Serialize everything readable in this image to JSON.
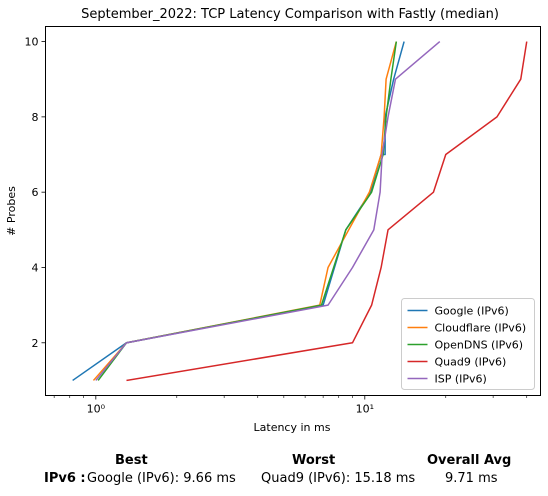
{
  "chart_data": {
    "type": "line",
    "title": "September_2022: TCP Latency Comparison with Fastly (median)",
    "xlabel": "Latency in ms",
    "ylabel": "# Probes",
    "xscale": "log",
    "xlim": [
      0.65,
      45
    ],
    "ylim": [
      0.6,
      10.4
    ],
    "xticks": [
      {
        "value": 1,
        "label": "10⁰"
      },
      {
        "value": 10,
        "label": "10¹"
      }
    ],
    "yticks": [
      2,
      4,
      6,
      8,
      10
    ],
    "grid": false,
    "legend": "lower-right",
    "series": [
      {
        "name": "Google (IPv6)",
        "color": "#1f77b4",
        "x": [
          0.82,
          1.3,
          7.0,
          8.5,
          10.5,
          11.5,
          11.9,
          11.9,
          12.8,
          14.0
        ],
        "y": [
          1,
          2,
          3,
          5,
          6,
          7,
          7,
          8,
          9,
          10
        ]
      },
      {
        "name": "Cloudflare (IPv6)",
        "color": "#ff7f0e",
        "x": [
          0.98,
          1.3,
          6.8,
          7.3,
          10.4,
          11.5,
          11.8,
          12.0,
          13.1
        ],
        "y": [
          1,
          2,
          3,
          4,
          6,
          7,
          8,
          9,
          10
        ]
      },
      {
        "name": "OpenDNS (IPv6)",
        "color": "#2ca02c",
        "x": [
          1.02,
          1.3,
          6.9,
          8.5,
          10.6,
          11.7,
          12.0,
          12.5,
          13.1
        ],
        "y": [
          1,
          2,
          3,
          5,
          6,
          7,
          8,
          9,
          10
        ]
      },
      {
        "name": "Quad9 (IPv6)",
        "color": "#d62728",
        "x": [
          1.3,
          9.0,
          10.6,
          11.5,
          12.2,
          18.0,
          20.0,
          31.0,
          38.0,
          40.0
        ],
        "y": [
          1,
          2,
          3,
          4,
          5,
          6,
          7,
          8,
          9,
          10
        ]
      },
      {
        "name": "ISP (IPv6)",
        "color": "#9467bd",
        "x": [
          1.0,
          1.3,
          7.3,
          9.0,
          10.8,
          11.4,
          11.6,
          12.2,
          13.0,
          19.0
        ],
        "y": [
          1,
          2,
          3,
          4,
          5,
          6,
          7,
          8,
          9,
          10
        ]
      }
    ]
  },
  "summary": {
    "headers": {
      "best": "Best",
      "worst": "Worst",
      "avg": "Overall Avg"
    },
    "row_label": "IPv6 :",
    "best": "Google (IPv6): 9.66 ms",
    "worst": "Quad9 (IPv6): 15.18 ms",
    "avg": "9.71 ms"
  }
}
